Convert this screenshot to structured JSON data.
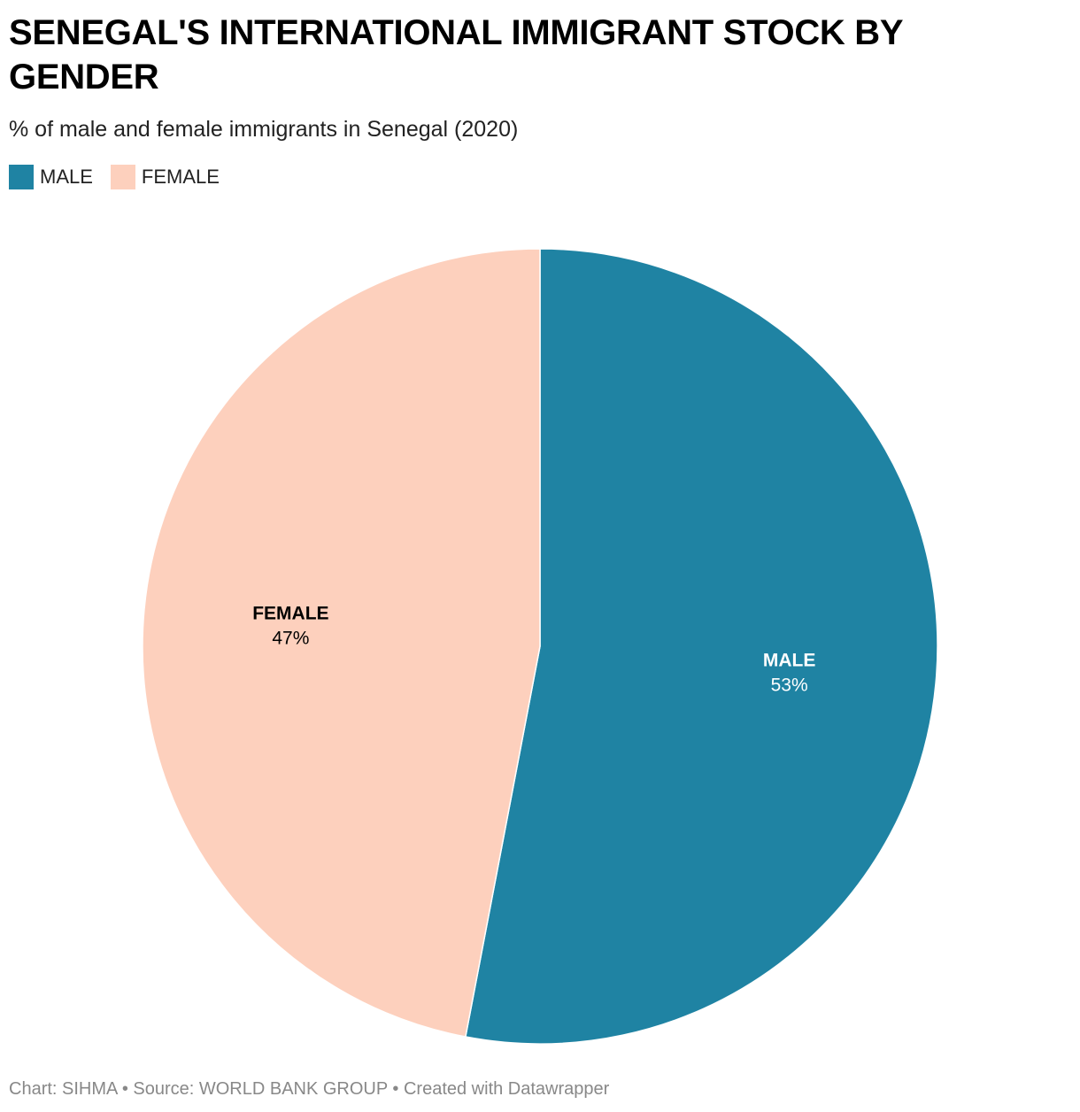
{
  "header": {
    "title": "SENEGAL'S INTERNATIONAL IMMIGRANT STOCK BY GENDER",
    "subtitle": "% of male and female immigrants in Senegal (2020)"
  },
  "legend": {
    "items": [
      {
        "label": "MALE",
        "color": "#1f83a3"
      },
      {
        "label": "FEMALE",
        "color": "#fdd0bd"
      }
    ]
  },
  "chart_data": {
    "type": "pie",
    "title": "SENEGAL'S INTERNATIONAL IMMIGRANT STOCK BY GENDER",
    "subtitle": "% of male and female immigrants in Senegal (2020)",
    "legend": "top-left",
    "slices": [
      {
        "label": "MALE",
        "value": 53,
        "value_label": "53%",
        "color": "#1f83a3",
        "label_color": "#ffffff"
      },
      {
        "label": "FEMALE",
        "value": 47,
        "value_label": "47%",
        "color": "#fdd0bd",
        "label_color": "#000000"
      }
    ]
  },
  "footer": {
    "text": "Chart: SIHMA • Source: WORLD BANK GROUP • Created with Datawrapper"
  }
}
